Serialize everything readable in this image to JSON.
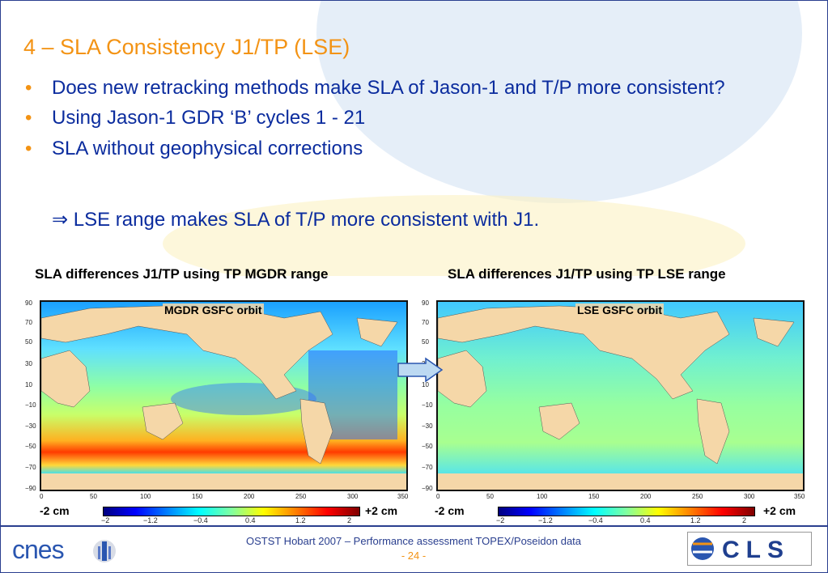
{
  "slide": {
    "title": "4 – SLA Consistency J1/TP (LSE)",
    "bullets": [
      {
        "marker": "•",
        "text": "Does new retracking methods make SLA of Jason-1 and T/P more consistent?"
      },
      {
        "marker": "•",
        "text": "Using Jason-1 GDR ‘B’ cycles 1 - 21"
      },
      {
        "marker": "•",
        "text": "SLA without geophysical corrections"
      }
    ],
    "implication": "⇒ LSE range  makes SLA of T/P more consistent with J1."
  },
  "panels": [
    {
      "title": "SLA differences J1/TP using TP MGDR range",
      "map_label": "MGDR GSFC orbit",
      "colorbar": {
        "min_label": "-2 cm",
        "max_label": "+2 cm"
      }
    },
    {
      "title": "SLA differences J1/TP using TP LSE range",
      "map_label": "LSE GSFC orbit",
      "colorbar": {
        "min_label": "-2 cm",
        "max_label": "+2 cm"
      }
    }
  ],
  "axes": {
    "y_ticks": [
      "90",
      "70",
      "50",
      "30",
      "10",
      "−10",
      "−30",
      "−50",
      "−70",
      "−90"
    ],
    "x_ticks": [
      "0",
      "50",
      "100",
      "150",
      "200",
      "250",
      "300",
      "350"
    ],
    "colorbar_ticks": [
      "−2",
      "−1.2",
      "−0.4",
      "0.4",
      "1.2",
      "2"
    ]
  },
  "footer": {
    "text": "OSTST Hobart 2007 – Performance assessment TOPEX/Poseidon data",
    "page": "- 24 -",
    "left_logo": "cnes",
    "right_logo": "CLS"
  },
  "colors": {
    "title": "#f39314",
    "bullet_text": "#0b2c9e",
    "frame": "#2a3f8f",
    "land": "#f5d7a8"
  }
}
